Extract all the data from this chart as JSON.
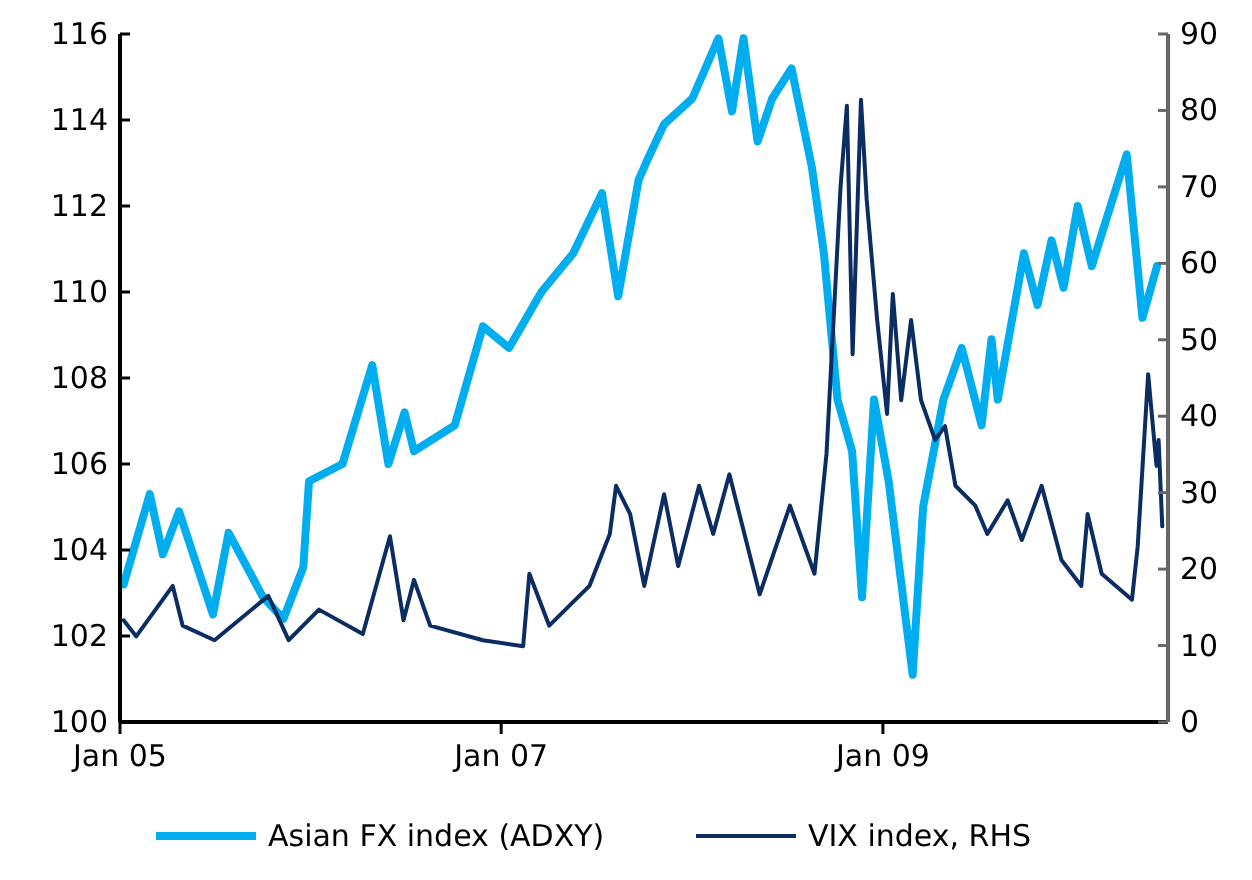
{
  "chart_data": {
    "type": "line",
    "xlim": [
      "2005-01-01",
      "2010-07-01"
    ],
    "xticks": [
      {
        "value": "2005-01-01",
        "label": "Jan 05"
      },
      {
        "value": "2007-01-01",
        "label": "Jan 07"
      },
      {
        "value": "2009-01-01",
        "label": "Jan 09"
      }
    ],
    "ylim": [
      100,
      116
    ],
    "yticks": [
      100,
      102,
      104,
      106,
      108,
      110,
      112,
      114,
      116
    ],
    "y2lim": [
      0,
      90
    ],
    "y2ticks": [
      0,
      10,
      20,
      30,
      40,
      50,
      60,
      70,
      80,
      90
    ],
    "legend": "bottom",
    "grid": false,
    "series": [
      {
        "name": "Asian FX index (ADXY)",
        "color": "#00aeef",
        "x": [
          "2005-01-08",
          "2005-02-27",
          "2005-03-24",
          "2005-04-24",
          "2005-06-28",
          "2005-07-28",
          "2005-10-02",
          "2005-11-10",
          "2005-12-18",
          "2005-12-29",
          "2006-03-03",
          "2006-04-29",
          "2006-05-30",
          "2006-06-30",
          "2006-07-18",
          "2006-10-04",
          "2006-11-27",
          "2007-01-16",
          "2007-03-19",
          "2007-05-19",
          "2007-07-13",
          "2007-08-13",
          "2007-09-21",
          "2007-10-09",
          "2007-11-09",
          "2008-01-02",
          "2008-02-21",
          "2008-03-18",
          "2008-04-09",
          "2008-05-06",
          "2008-06-03",
          "2008-07-10",
          "2008-08-18",
          "2008-09-10",
          "2008-10-06",
          "2008-11-03",
          "2008-11-22",
          "2008-12-15",
          "2009-01-12",
          "2009-02-27",
          "2009-03-19",
          "2009-04-27",
          "2009-06-01",
          "2009-07-09",
          "2009-07-28",
          "2009-08-09",
          "2009-09-28",
          "2009-10-24",
          "2009-11-20",
          "2009-12-13",
          "2010-01-09",
          "2010-02-05",
          "2010-02-28",
          "2010-04-13",
          "2010-05-13",
          "2010-06-10"
        ],
        "values": [
          103.2,
          105.3,
          103.9,
          104.9,
          102.5,
          104.4,
          102.9,
          102.4,
          103.6,
          105.6,
          106.0,
          108.3,
          106.0,
          107.2,
          106.3,
          106.9,
          109.2,
          108.7,
          110.0,
          110.9,
          112.3,
          109.9,
          112.6,
          113.1,
          113.9,
          114.5,
          115.9,
          114.2,
          115.9,
          113.5,
          114.5,
          115.2,
          112.9,
          110.9,
          107.5,
          106.3,
          102.9,
          107.5,
          105.6,
          101.1,
          105.0,
          107.5,
          108.7,
          106.9,
          108.9,
          107.5,
          110.9,
          109.7,
          111.2,
          110.1,
          112.0,
          110.6,
          111.5,
          113.2,
          109.4,
          110.6
        ]
      },
      {
        "name": "VIX index, RHS",
        "color": "#0b2d62",
        "axis": "y2",
        "x": [
          "2005-01-08",
          "2005-02-01",
          "2005-04-12",
          "2005-05-01",
          "2005-07-01",
          "2005-10-12",
          "2005-11-20",
          "2006-01-17",
          "2006-04-11",
          "2006-06-02",
          "2006-06-28",
          "2006-07-18",
          "2006-08-18",
          "2006-11-27",
          "2007-02-12",
          "2007-02-24",
          "2007-04-03",
          "2007-06-19",
          "2007-07-28",
          "2007-08-09",
          "2007-09-05",
          "2007-10-02",
          "2007-11-09",
          "2007-12-06",
          "2008-01-15",
          "2008-02-11",
          "2008-03-13",
          "2008-05-10",
          "2008-07-07",
          "2008-08-23",
          "2008-09-15",
          "2008-10-12",
          "2008-10-24",
          "2008-11-04",
          "2008-11-20",
          "2008-12-01",
          "2008-12-21",
          "2009-01-09",
          "2009-01-20",
          "2009-02-05",
          "2009-02-24",
          "2009-03-15",
          "2009-04-11",
          "2009-04-30",
          "2009-05-20",
          "2009-06-27",
          "2009-07-20",
          "2009-08-28",
          "2009-09-24",
          "2009-11-01",
          "2009-12-09",
          "2010-01-16",
          "2010-01-28",
          "2010-02-24",
          "2010-04-23",
          "2010-05-04",
          "2010-05-24",
          "2010-06-09",
          "2010-06-13",
          "2010-06-20"
        ],
        "values": [
          13.3,
          11.2,
          17.8,
          12.6,
          10.7,
          16.5,
          10.7,
          14.7,
          11.5,
          24.3,
          13.3,
          18.6,
          12.6,
          10.7,
          9.9,
          19.4,
          12.6,
          17.8,
          24.6,
          30.9,
          27.2,
          17.8,
          29.8,
          20.4,
          30.9,
          24.6,
          32.4,
          16.7,
          28.3,
          19.4,
          35.1,
          70.1,
          80.6,
          48.1,
          81.4,
          68.3,
          52.6,
          40.3,
          56.0,
          42.1,
          52.6,
          42.1,
          36.9,
          38.7,
          30.9,
          28.3,
          24.6,
          29.0,
          23.8,
          30.9,
          21.2,
          17.8,
          27.2,
          19.4,
          16.0,
          23.0,
          45.5,
          33.5,
          36.9,
          25.6
        ]
      }
    ]
  }
}
